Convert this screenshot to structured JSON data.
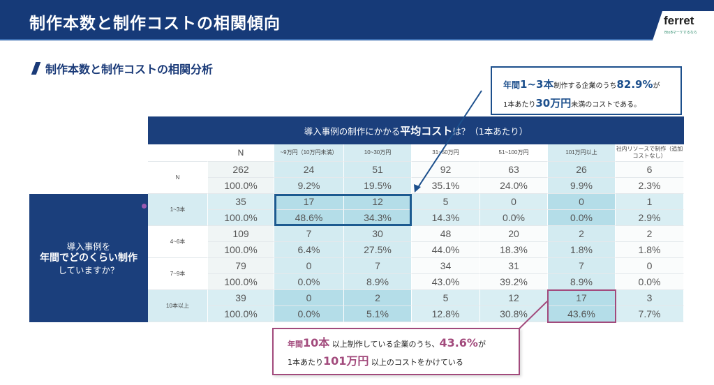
{
  "header": {
    "title": "制作本数と制作コストの相関傾向",
    "logo": "ferret",
    "logo_sub": "BtoBマーケするなら"
  },
  "subtitle": "制作本数と制作コストの相関分析",
  "table": {
    "question_top_pre": "導入事例の制作にかかる",
    "question_top_bold": "平均コスト",
    "question_top_post": "は？（1本あたり）",
    "question_left": [
      "導入事例を",
      "年間でどのくらい制作",
      "していますか？"
    ],
    "columns": [
      "N",
      "~9万円（10万円未満）",
      "10~30万円",
      "31~50万円",
      "51~100万円",
      "101万円以上",
      "社内リソースで制作（追加コストなし）"
    ],
    "rows": [
      {
        "label": "N",
        "counts": [
          "262",
          "24",
          "51",
          "92",
          "63",
          "26",
          "6"
        ],
        "percents": [
          "100.0%",
          "9.2%",
          "19.5%",
          "35.1%",
          "24.0%",
          "9.9%",
          "2.3%"
        ]
      },
      {
        "label": "1~3本",
        "counts": [
          "35",
          "17",
          "12",
          "5",
          "0",
          "0",
          "1"
        ],
        "percents": [
          "100.0%",
          "48.6%",
          "34.3%",
          "14.3%",
          "0.0%",
          "0.0%",
          "2.9%"
        ]
      },
      {
        "label": "4~6本",
        "counts": [
          "109",
          "7",
          "30",
          "48",
          "20",
          "2",
          "2"
        ],
        "percents": [
          "100.0%",
          "6.4%",
          "27.5%",
          "44.0%",
          "18.3%",
          "1.8%",
          "1.8%"
        ]
      },
      {
        "label": "7~9本",
        "counts": [
          "79",
          "0",
          "7",
          "34",
          "31",
          "7",
          "0"
        ],
        "percents": [
          "100.0%",
          "0.0%",
          "8.9%",
          "43.0%",
          "39.2%",
          "8.9%",
          "0.0%"
        ]
      },
      {
        "label": "10本以上",
        "counts": [
          "39",
          "0",
          "2",
          "5",
          "12",
          "17",
          "3"
        ],
        "percents": [
          "100.0%",
          "0.0%",
          "5.1%",
          "12.8%",
          "30.8%",
          "43.6%",
          "7.7%"
        ]
      }
    ]
  },
  "callout1": {
    "p1": "年間",
    "p2": "1~3本",
    "p3": "制作する企業のうち",
    "p4": "82.9%",
    "p5": "が",
    "p6": "1本あたり",
    "p7": "30万円",
    "p8": "未満のコストである。"
  },
  "callout2": {
    "p1": "年間",
    "p2": "10本",
    "p3": "以上制作している企業のうち、",
    "p4": "43.6%",
    "p5": "が",
    "p6": "1本あたり",
    "p7": "101万円",
    "p8": "以上のコストをかけている"
  },
  "colors": {
    "navy": "#1b3f7c",
    "callout_blue": "#1c4f8c",
    "callout_pink": "#a24a7c"
  }
}
